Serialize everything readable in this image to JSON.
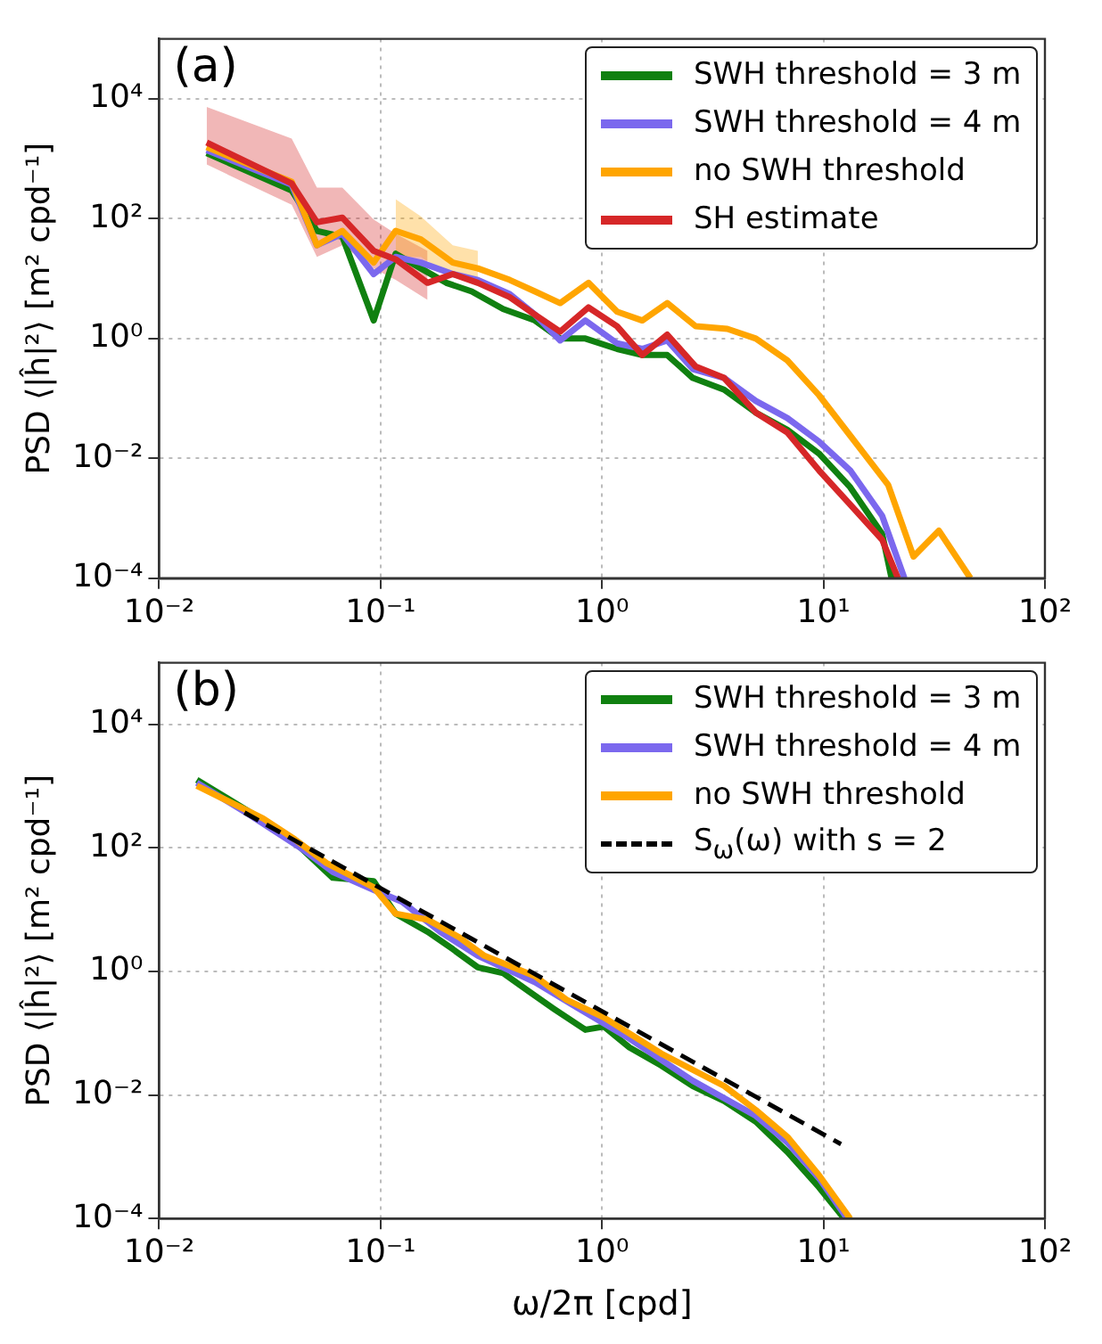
{
  "chart_data": [
    {
      "type": "line",
      "ylabel": "PSD ⟨|ĥ|²⟩ [m² cpd⁻¹]",
      "log": "xy",
      "grid": true,
      "legend": "top right",
      "annotations": [
        "(a)"
      ],
      "xlim": [
        0.01,
        100
      ],
      "xticks": [
        {
          "value": 0.01,
          "label": "10⁻²"
        },
        {
          "value": 0.1,
          "label": "10⁻¹"
        },
        {
          "value": 1,
          "label": "10⁰"
        },
        {
          "value": 10,
          "label": "10¹"
        },
        {
          "value": 100,
          "label": "10²"
        }
      ],
      "ylim": [
        0.0001,
        100000
      ],
      "yticks": [
        {
          "value": 0.0001,
          "label": "10⁻⁴"
        },
        {
          "value": 0.01,
          "label": "10⁻²"
        },
        {
          "value": 1,
          "label": "10⁰"
        },
        {
          "value": 100,
          "label": "10²"
        },
        {
          "value": 10000,
          "label": "10⁴"
        }
      ],
      "series": [
        {
          "name": "SWH threshold = 3 m",
          "color": "#108010",
          "x": [
            0.0164,
            0.0397,
            0.0516,
            0.0672,
            0.0931,
            0.117,
            0.152,
            0.198,
            0.258,
            0.358,
            0.498,
            0.647,
            0.841,
            1.17,
            1.52,
            1.97,
            2.57,
            3.56,
            4.95,
            6.87,
            9.55,
            13.2,
            18.4,
            20.3
          ],
          "values": [
            1240,
            295,
            62.5,
            50,
            2.0,
            26,
            14.8,
            8.5,
            6.1,
            3.1,
            2.0,
            1.0,
            1.0,
            0.67,
            0.53,
            0.53,
            0.22,
            0.14,
            0.058,
            0.03,
            0.012,
            0.0033,
            0.00055,
            0.0001
          ]
        },
        {
          "name": "SWH threshold = 4 m",
          "color": "#7b68ee",
          "x": [
            0.0164,
            0.0397,
            0.0516,
            0.0672,
            0.0931,
            0.117,
            0.152,
            0.212,
            0.275,
            0.383,
            0.498,
            0.647,
            0.841,
            1.17,
            1.52,
            1.97,
            2.57,
            3.56,
            4.95,
            6.87,
            9.55,
            13.2,
            18.4,
            23.2
          ],
          "values": [
            1390,
            368,
            36,
            56,
            11.9,
            23,
            18.5,
            11.9,
            9.5,
            5.5,
            2.5,
            0.93,
            2.0,
            0.83,
            0.67,
            0.93,
            0.31,
            0.22,
            0.091,
            0.047,
            0.019,
            0.0063,
            0.0011,
            0.0001
          ]
        },
        {
          "name": "no SWH threshold",
          "color": "#ffa500",
          "x": [
            0.0164,
            0.0397,
            0.0516,
            0.0672,
            0.0931,
            0.117,
            0.152,
            0.212,
            0.275,
            0.383,
            0.498,
            0.647,
            0.869,
            1.17,
            1.52,
            1.97,
            2.65,
            3.68,
            4.95,
            6.87,
            9.55,
            13.2,
            19.6,
            25.5,
            33.2,
            46.1
          ],
          "values": [
            1560,
            411,
            36,
            62.5,
            18.5,
            62.5,
            45,
            18.5,
            14.8,
            9.5,
            6.1,
            3.9,
            8.5,
            2.8,
            2.0,
            3.9,
            1.6,
            1.45,
            1.0,
            0.43,
            0.113,
            0.024,
            0.0036,
            0.00023,
            0.00062,
            0.0001
          ],
          "lower": [
            null,
            null,
            null,
            null,
            null,
            23,
            23,
            10.6,
            7.6,
            null,
            null,
            null,
            null,
            null,
            null,
            null,
            null,
            null,
            null,
            null,
            null,
            null,
            null,
            null,
            null,
            null
          ],
          "upper": [
            null,
            null,
            null,
            null,
            null,
            211,
            109,
            36,
            29,
            null,
            null,
            null,
            null,
            null,
            null,
            null,
            null,
            null,
            null,
            null,
            null,
            null,
            null,
            null,
            null,
            null
          ]
        },
        {
          "name": "SH estimate",
          "color": "#d62728",
          "x": [
            0.0164,
            0.0397,
            0.0516,
            0.0672,
            0.0931,
            0.117,
            0.163,
            0.212,
            0.275,
            0.383,
            0.498,
            0.647,
            0.869,
            1.17,
            1.52,
            1.97,
            2.65,
            3.56,
            4.95,
            6.87,
            9.55,
            13.2,
            18.4,
            21.7
          ],
          "values": [
            1860,
            385,
            87,
            104,
            29,
            21,
            8.5,
            11.9,
            8.5,
            4.9,
            2.5,
            1.3,
            3.3,
            1.6,
            0.53,
            1.16,
            0.34,
            0.22,
            0.058,
            0.027,
            0.0063,
            0.0017,
            0.00044,
            0.0001
          ],
          "lower": [
            800,
            170,
            23,
            36,
            14.8,
            9.5,
            4.4,
            null,
            null,
            null,
            null,
            null,
            null,
            null,
            null,
            null,
            null,
            null,
            null,
            null,
            null,
            null,
            null,
            null
          ],
          "upper": [
            7300,
            2170,
            330,
            330,
            97,
            56,
            29,
            null,
            null,
            null,
            null,
            null,
            null,
            null,
            null,
            null,
            null,
            null,
            null,
            null,
            null,
            null,
            null,
            null
          ]
        }
      ]
    },
    {
      "type": "line",
      "xlabel": "ω/2π [cpd]",
      "ylabel": "PSD ⟨|ĥ|²⟩ [m² cpd⁻¹]",
      "log": "xy",
      "grid": true,
      "legend": "top right",
      "annotations": [
        "(b)"
      ],
      "xlim": [
        0.01,
        100
      ],
      "xticks": [
        {
          "value": 0.01,
          "label": "10⁻²"
        },
        {
          "value": 0.1,
          "label": "10⁻¹"
        },
        {
          "value": 1,
          "label": "10⁰"
        },
        {
          "value": 10,
          "label": "10¹"
        },
        {
          "value": 100,
          "label": "10²"
        }
      ],
      "ylim": [
        0.0001,
        100000
      ],
      "yticks": [
        {
          "value": 0.0001,
          "label": "10⁻⁴"
        },
        {
          "value": 0.01,
          "label": "10⁻²"
        },
        {
          "value": 1,
          "label": "10⁰"
        },
        {
          "value": 100,
          "label": "10²"
        },
        {
          "value": 10000,
          "label": "10⁴"
        }
      ],
      "series": [
        {
          "name": "SWH threshold = 3 m",
          "color": "#108010",
          "x": [
            0.0148,
            0.0259,
            0.041,
            0.0608,
            0.0931,
            0.117,
            0.163,
            0.212,
            0.275,
            0.358,
            0.466,
            0.605,
            0.841,
            1.02,
            1.33,
            1.85,
            2.57,
            3.56,
            4.95,
            6.87,
            9.55,
            12.4
          ],
          "values": [
            1270,
            375,
            124,
            33,
            29,
            8.6,
            4.4,
            2.3,
            1.17,
            0.94,
            0.48,
            0.25,
            0.114,
            0.128,
            0.059,
            0.03,
            0.014,
            0.008,
            0.0037,
            0.0012,
            0.00032,
            0.0001
          ]
        },
        {
          "name": "SWH threshold = 4 m",
          "color": "#7b68ee",
          "x": [
            0.0148,
            0.0259,
            0.0438,
            0.0608,
            0.0931,
            0.125,
            0.186,
            0.275,
            0.498,
            0.787,
            1.33,
            2.57,
            4.95,
            6.87,
            9.55,
            12.8
          ],
          "values": [
            1140,
            336,
            99,
            41,
            21,
            13.5,
            4.4,
            1.8,
            0.67,
            0.25,
            0.082,
            0.017,
            0.0046,
            0.0017,
            0.00045,
            0.0001
          ]
        },
        {
          "name": "no SWH threshold",
          "color": "#ffa500",
          "x": [
            0.0148,
            0.0295,
            0.041,
            0.057,
            0.0931,
            0.117,
            0.163,
            0.226,
            0.294,
            0.498,
            0.69,
            1.02,
            1.85,
            3.56,
            4.95,
            6.87,
            9.55,
            13.2
          ],
          "values": [
            1020,
            301,
            138,
            57,
            23,
            8.6,
            6.9,
            3.6,
            1.8,
            0.84,
            0.35,
            0.18,
            0.047,
            0.014,
            0.0057,
            0.0021,
            0.0005,
            0.0001
          ]
        },
        {
          "name": "S$_{ω}$(ω) with s = 2",
          "color": "#000000",
          "line_style": "dashed",
          "x": [
            0.0243,
            12.0
          ],
          "values": [
            375,
            0.0016
          ]
        }
      ]
    }
  ]
}
